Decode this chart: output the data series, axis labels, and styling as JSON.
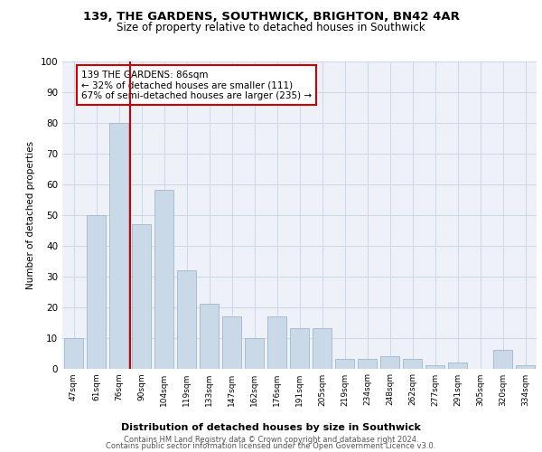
{
  "title1": "139, THE GARDENS, SOUTHWICK, BRIGHTON, BN42 4AR",
  "title2": "Size of property relative to detached houses in Southwick",
  "xlabel": "Distribution of detached houses by size in Southwick",
  "ylabel": "Number of detached properties",
  "categories": [
    "47sqm",
    "61sqm",
    "76sqm",
    "90sqm",
    "104sqm",
    "119sqm",
    "133sqm",
    "147sqm",
    "162sqm",
    "176sqm",
    "191sqm",
    "205sqm",
    "219sqm",
    "234sqm",
    "248sqm",
    "262sqm",
    "277sqm",
    "291sqm",
    "305sqm",
    "320sqm",
    "334sqm"
  ],
  "values": [
    10,
    50,
    80,
    47,
    58,
    32,
    21,
    17,
    10,
    17,
    13,
    13,
    3,
    3,
    4,
    3,
    1,
    2,
    0,
    6,
    1
  ],
  "bar_color": "#c9d9e8",
  "bar_edge_color": "#a0b8cc",
  "grid_color": "#d0d8e8",
  "bg_color": "#eef2f8",
  "vline_color": "#cc0000",
  "annotation_text": "139 THE GARDENS: 86sqm\n← 32% of detached houses are smaller (111)\n67% of semi-detached houses are larger (235) →",
  "annotation_box_color": "#ffffff",
  "annotation_box_edge_color": "#cc0000",
  "footer1": "Contains HM Land Registry data © Crown copyright and database right 2024.",
  "footer2": "Contains public sector information licensed under the Open Government Licence v3.0.",
  "ylim": [
    0,
    100
  ],
  "yticks": [
    0,
    10,
    20,
    30,
    40,
    50,
    60,
    70,
    80,
    90,
    100
  ]
}
